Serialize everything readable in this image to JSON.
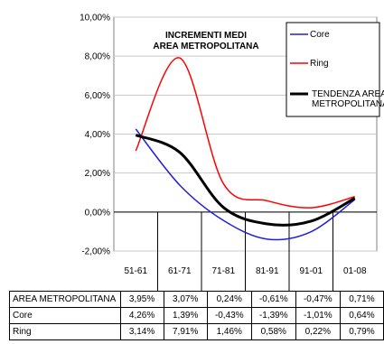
{
  "chart_data": {
    "type": "line",
    "title_lines": [
      "INCREMENTI MEDI",
      "AREA METROPOLITANA"
    ],
    "categories": [
      "51-61",
      "61-71",
      "71-81",
      "81-91",
      "91-01",
      "01-08"
    ],
    "ylim": [
      -0.02,
      0.1
    ],
    "yticks": [
      "10,00%",
      "8,00%",
      "6,00%",
      "4,00%",
      "2,00%",
      "0,00%",
      "-2,00%"
    ],
    "grid": true,
    "legend_position": "top-right",
    "series": [
      {
        "key": "core",
        "name": "Core",
        "color": "#1f1fe0",
        "values": [
          0.0426,
          0.0139,
          -0.0043,
          -0.0139,
          -0.0101,
          0.0064
        ]
      },
      {
        "key": "ring",
        "name": "Ring",
        "color": "#ff0000",
        "values": [
          0.0314,
          0.0791,
          0.0146,
          0.0058,
          0.0022,
          0.0079
        ]
      },
      {
        "key": "area",
        "name": "TENDENZA AREA METROPOLITANA",
        "color": "#000000",
        "values": [
          0.0395,
          0.0307,
          0.0024,
          -0.0061,
          -0.0047,
          0.0071
        ]
      }
    ]
  },
  "table": {
    "rows": [
      {
        "label": "AREA METROPOLITANA",
        "values": [
          "3,95%",
          "3,07%",
          "0,24%",
          "-0,61%",
          "-0,47%",
          "0,71%"
        ]
      },
      {
        "label": "Core",
        "values": [
          "4,26%",
          "1,39%",
          "-0,43%",
          "-1,39%",
          "-1,01%",
          "0,64%"
        ]
      },
      {
        "label": "Ring",
        "values": [
          "3,14%",
          "7,91%",
          "1,46%",
          "0,58%",
          "0,22%",
          "0,79%"
        ]
      }
    ]
  }
}
